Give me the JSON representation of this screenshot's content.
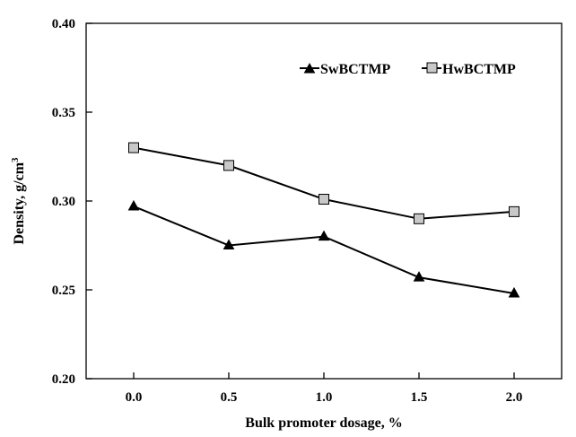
{
  "chart_data": {
    "type": "line",
    "title": "",
    "xlabel": "Bulk promoter dosage, %",
    "ylabel_main": "Density, g/cm",
    "ylabel_sup": "3",
    "x": [
      0.0,
      0.5,
      1.0,
      1.5,
      2.0
    ],
    "x_tick_labels": [
      "0.0",
      "0.5",
      "1.0",
      "1.5",
      "2.0"
    ],
    "xlim": [
      -0.25,
      2.25
    ],
    "ylim": [
      0.2,
      0.4
    ],
    "y_ticks": [
      0.2,
      0.25,
      0.3,
      0.35,
      0.4
    ],
    "y_tick_labels": [
      "0.20",
      "0.25",
      "0.30",
      "0.35",
      "0.40"
    ],
    "legend_position": "top-right",
    "grid": false,
    "series": [
      {
        "name": "SwBCTMP",
        "marker": "triangle",
        "marker_fill": "#000000",
        "values": [
          0.297,
          0.275,
          0.28,
          0.257,
          0.248
        ]
      },
      {
        "name": "HwBCTMP",
        "marker": "square",
        "marker_fill": "#c8c8c8",
        "values": [
          0.33,
          0.32,
          0.301,
          0.29,
          0.294
        ]
      }
    ]
  }
}
